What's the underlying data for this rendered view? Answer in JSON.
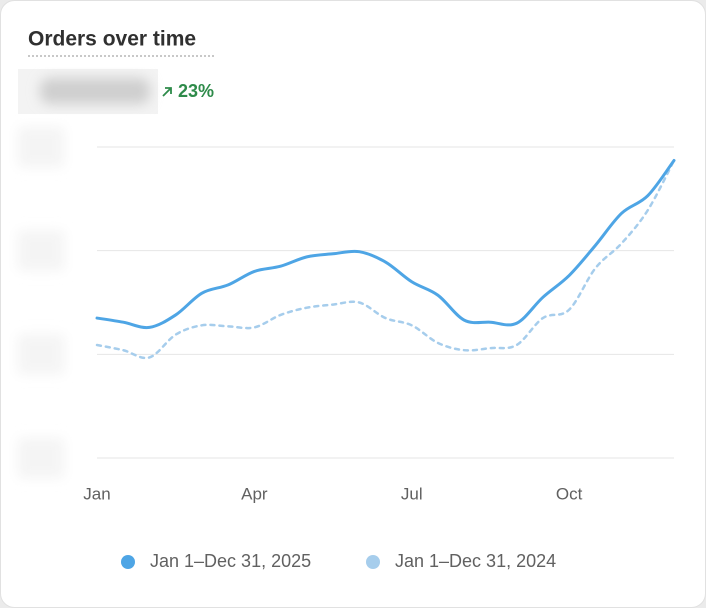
{
  "chart_data": {
    "type": "line",
    "title": "Orders over time",
    "change": "23%",
    "categories": [
      "Jan",
      null,
      null,
      null,
      null,
      null,
      "Apr",
      null,
      null,
      null,
      null,
      null,
      "Jul",
      null,
      null,
      null,
      null,
      null,
      "Oct",
      null,
      null,
      null,
      null
    ],
    "series": [
      {
        "name": "Jan 1–Dec 31, 2025",
        "color": "#4ea5e5",
        "dashed": false,
        "values": [
          1.35,
          1.31,
          1.26,
          1.38,
          1.59,
          1.67,
          1.8,
          1.85,
          1.94,
          1.97,
          1.99,
          1.89,
          1.7,
          1.57,
          1.33,
          1.31,
          1.3,
          1.55,
          1.76,
          2.05,
          2.36,
          2.53,
          2.87
        ]
      },
      {
        "name": "Jan 1–Dec 31, 2024",
        "color": "#a6cdec",
        "dashed": true,
        "values": [
          1.09,
          1.04,
          0.97,
          1.19,
          1.28,
          1.27,
          1.26,
          1.38,
          1.45,
          1.48,
          1.5,
          1.35,
          1.28,
          1.11,
          1.04,
          1.06,
          1.09,
          1.35,
          1.43,
          1.83,
          2.07,
          2.39,
          2.87
        ]
      }
    ],
    "ylim": [
      0,
      3
    ],
    "yticks": [
      0,
      1,
      2,
      3
    ],
    "grid": true
  }
}
